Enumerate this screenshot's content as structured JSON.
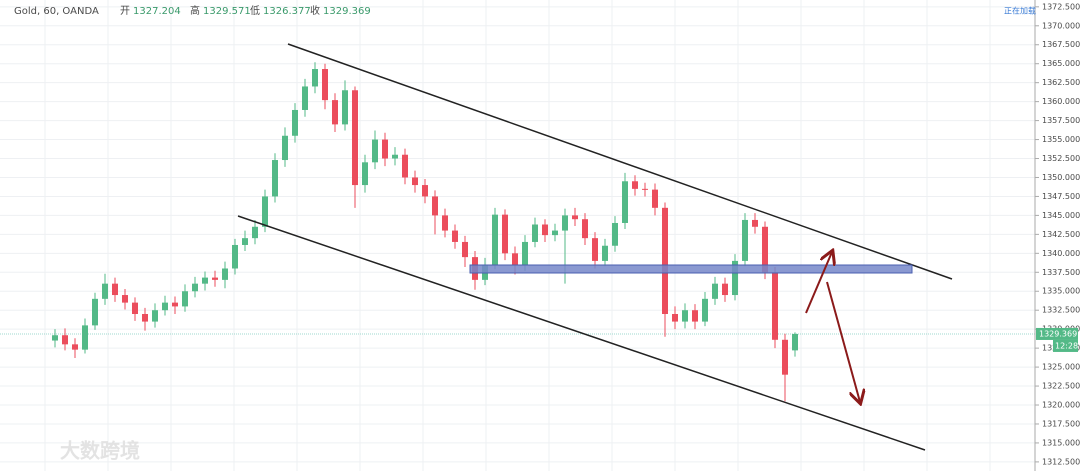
{
  "chart_data": {
    "type": "candlestick",
    "header": {
      "symbol": "Gold, 60, OANDA",
      "open_label": "开",
      "high_label": "高",
      "low_label": "低",
      "close_label": "收"
    },
    "status": "正在加载",
    "countdown": "12:28",
    "watermark": "大数跨境",
    "up_color": "#53b987",
    "down_color": "#eb4d5c",
    "categories": [
      null,
      null,
      null,
      null,
      null,
      null,
      null,
      null,
      null,
      null,
      null,
      null,
      null,
      null,
      null,
      null,
      null,
      null,
      null,
      null,
      null,
      null,
      null,
      null,
      null,
      null,
      null,
      null,
      null,
      null,
      null,
      null,
      null,
      null,
      null,
      null,
      null,
      null,
      null,
      null,
      null,
      null,
      null,
      null,
      null,
      null,
      null,
      null,
      null,
      null,
      null,
      null,
      null,
      null,
      null,
      null,
      null,
      null,
      null,
      null,
      null,
      null,
      null,
      null,
      null,
      null,
      null,
      null,
      null,
      null,
      null,
      null,
      null,
      null,
      null
    ],
    "open": [
      1328.5,
      1329.2,
      1328.0,
      1327.3,
      1330.5,
      1334.0,
      1336.0,
      1334.5,
      1333.5,
      1332.0,
      1331.0,
      1332.5,
      1333.5,
      1333.0,
      1335.0,
      1336.0,
      1336.8,
      1336.5,
      1338.0,
      1341.1,
      1342.0,
      1343.5,
      1347.5,
      1352.3,
      1355.5,
      1358.9,
      1362.0,
      1364.3,
      1360.2,
      1357.0,
      1361.5,
      1349.0,
      1352.0,
      1355.0,
      1352.5,
      1353.0,
      1350.0,
      1349.0,
      1347.5,
      1345.0,
      1343.0,
      1341.5,
      1339.5,
      1336.5,
      1338.5,
      1345.1,
      1340.0,
      1338.5,
      1341.5,
      1343.8,
      1342.4,
      1343.0,
      1345.0,
      1344.5,
      1342.0,
      1339.0,
      1341.0,
      1344.0,
      1349.5,
      1348.5,
      1348.4,
      1346.0,
      1332.0,
      1331.0,
      1332.5,
      1331.0,
      1334.0,
      1336.0,
      1334.5,
      1339.0,
      1344.4,
      1343.5,
      1337.5,
      1328.6,
      1327.204
    ],
    "high": [
      1330.0,
      1330.1,
      1328.8,
      1331.4,
      1334.8,
      1337.3,
      1336.8,
      1335.3,
      1334.2,
      1332.8,
      1333.4,
      1334.4,
      1334.3,
      1335.9,
      1336.9,
      1337.6,
      1337.7,
      1338.9,
      1341.9,
      1343.0,
      1344.4,
      1348.4,
      1353.2,
      1356.6,
      1359.8,
      1363.0,
      1365.2,
      1365.0,
      1361.1,
      1362.8,
      1362.0,
      1353.0,
      1356.2,
      1355.9,
      1354.0,
      1353.8,
      1350.9,
      1349.8,
      1348.3,
      1345.9,
      1343.8,
      1342.3,
      1340.3,
      1339.4,
      1346.0,
      1345.8,
      1340.9,
      1342.4,
      1344.7,
      1344.5,
      1343.9,
      1345.9,
      1346.0,
      1345.3,
      1342.8,
      1341.9,
      1344.9,
      1350.6,
      1350.3,
      1349.3,
      1349.2,
      1346.7,
      1333.0,
      1333.4,
      1333.3,
      1334.9,
      1336.9,
      1336.8,
      1339.9,
      1345.3,
      1345.3,
      1344.2,
      1338.2,
      1329.4,
      1329.571
    ],
    "low": [
      1327.6,
      1327.2,
      1326.2,
      1326.8,
      1329.9,
      1333.2,
      1333.6,
      1332.6,
      1331.1,
      1329.8,
      1330.2,
      1331.8,
      1332.0,
      1332.3,
      1334.2,
      1335.1,
      1335.6,
      1335.4,
      1337.2,
      1340.3,
      1341.2,
      1342.8,
      1346.7,
      1351.4,
      1354.6,
      1358.0,
      1361.1,
      1359.0,
      1356.0,
      1356.2,
      1346.0,
      1348.0,
      1351.1,
      1351.5,
      1351.6,
      1349.1,
      1348.0,
      1346.6,
      1342.5,
      1342.1,
      1340.6,
      1338.2,
      1335.2,
      1335.8,
      1337.9,
      1339.1,
      1337.2,
      1337.7,
      1340.8,
      1341.5,
      1341.6,
      1336.0,
      1343.6,
      1341.1,
      1338.0,
      1338.3,
      1340.2,
      1343.2,
      1347.6,
      1347.5,
      1345.0,
      1329.0,
      1330.0,
      1330.1,
      1330.0,
      1330.4,
      1333.2,
      1333.6,
      1333.8,
      1338.3,
      1342.6,
      1336.6,
      1327.5,
      1320.5,
      1326.377
    ],
    "close": [
      1329.2,
      1328.0,
      1327.3,
      1330.5,
      1334.0,
      1336.0,
      1334.5,
      1333.5,
      1332.0,
      1331.0,
      1332.5,
      1333.5,
      1333.0,
      1335.0,
      1336.0,
      1336.8,
      1336.5,
      1338.0,
      1341.1,
      1342.0,
      1343.5,
      1347.5,
      1352.3,
      1355.5,
      1358.9,
      1362.0,
      1364.3,
      1360.2,
      1357.0,
      1361.5,
      1349.0,
      1352.0,
      1355.0,
      1352.5,
      1353.0,
      1350.0,
      1349.0,
      1347.5,
      1345.0,
      1343.0,
      1341.5,
      1339.5,
      1336.5,
      1338.5,
      1345.1,
      1340.0,
      1338.5,
      1341.5,
      1343.8,
      1342.4,
      1343.0,
      1345.0,
      1344.5,
      1342.0,
      1339.0,
      1341.0,
      1344.0,
      1349.5,
      1348.5,
      1348.4,
      1346.0,
      1332.0,
      1331.0,
      1332.5,
      1331.0,
      1334.0,
      1336.0,
      1334.5,
      1339.0,
      1344.4,
      1343.5,
      1337.5,
      1328.6,
      1324.0,
      1329.369
    ],
    "ylim": [
      1311.3,
      1373.4
    ],
    "yticks": [
      {
        "value": 1312.5,
        "label": "1312.500"
      },
      {
        "value": 1315,
        "label": "1315.000"
      },
      {
        "value": 1317.5,
        "label": "1317.500"
      },
      {
        "value": 1320,
        "label": "1320.000"
      },
      {
        "value": 1322.5,
        "label": "1322.500"
      },
      {
        "value": 1325,
        "label": "1325.000"
      },
      {
        "value": 1327.5,
        "label": "1327.500"
      },
      {
        "value": 1330,
        "label": "1330.000"
      },
      {
        "value": 1332.5,
        "label": "1332.500"
      },
      {
        "value": 1335,
        "label": "1335.000"
      },
      {
        "value": 1337.5,
        "label": "1337.500"
      },
      {
        "value": 1340,
        "label": "1340.000"
      },
      {
        "value": 1342.5,
        "label": "1342.500"
      },
      {
        "value": 1345,
        "label": "1345.000"
      },
      {
        "value": 1347.5,
        "label": "1347.500"
      },
      {
        "value": 1350,
        "label": "1350.000"
      },
      {
        "value": 1352.5,
        "label": "1352.500"
      },
      {
        "value": 1355,
        "label": "1355.000"
      },
      {
        "value": 1357.5,
        "label": "1357.500"
      },
      {
        "value": 1360,
        "label": "1360.000"
      },
      {
        "value": 1362.5,
        "label": "1362.500"
      },
      {
        "value": 1365,
        "label": "1365.000"
      },
      {
        "value": 1367.5,
        "label": "1367.500"
      },
      {
        "value": 1370,
        "label": "1370.000"
      },
      {
        "value": 1372.5,
        "label": "1372.500"
      }
    ],
    "grid": true
  }
}
